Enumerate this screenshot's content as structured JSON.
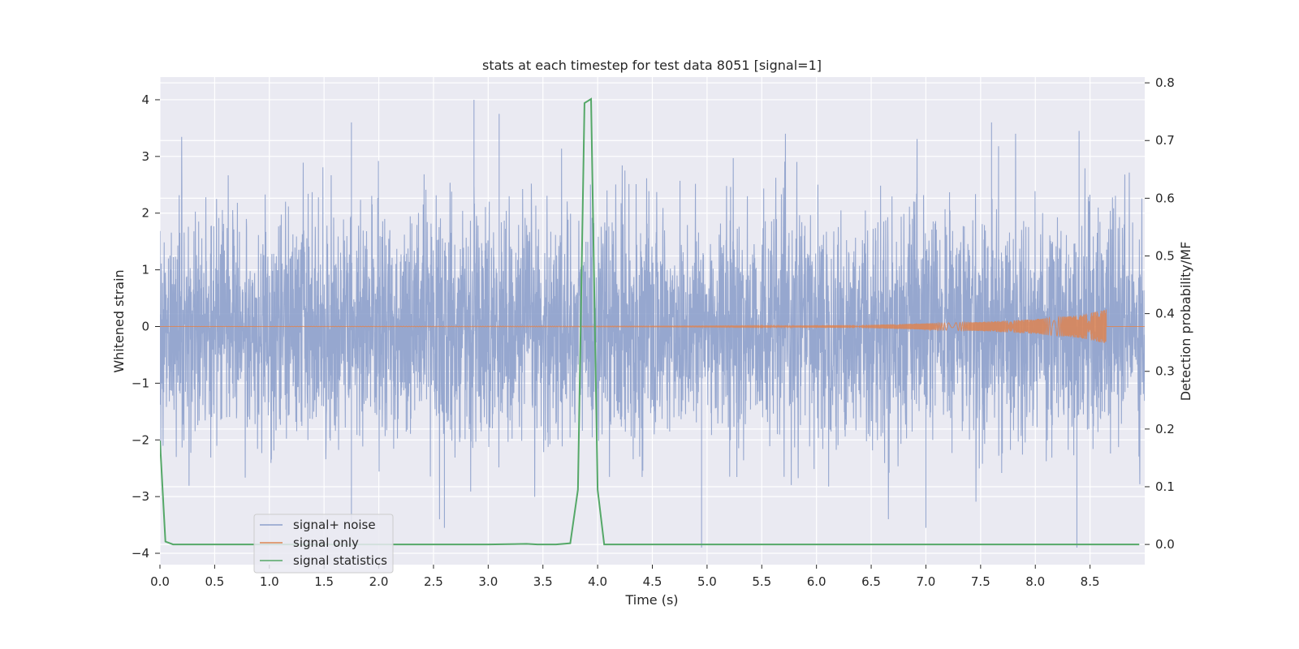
{
  "chart_data": {
    "type": "line",
    "title": "stats at each timestep for test data 8051 [signal=1]",
    "xlabel": "Time (s)",
    "ylabel": "Whitened strain",
    "y2label": "Detection probability/MF",
    "xlim": [
      0.0,
      9.0
    ],
    "ylim": [
      -4.2,
      4.4
    ],
    "y2lim": [
      -0.035,
      0.81
    ],
    "x_ticks": [
      "0.0",
      "0.5",
      "1.0",
      "1.5",
      "2.0",
      "2.5",
      "3.0",
      "3.5",
      "4.0",
      "4.5",
      "5.0",
      "5.5",
      "6.0",
      "6.5",
      "7.0",
      "7.5",
      "8.0",
      "8.5"
    ],
    "y_ticks": [
      "4",
      "3",
      "2",
      "1",
      "0",
      "−1",
      "−2",
      "−3",
      "−4"
    ],
    "y2_ticks": [
      "0.8",
      "0.7",
      "0.6",
      "0.5",
      "0.4",
      "0.3",
      "0.2",
      "0.1",
      "0.0"
    ],
    "grid": true,
    "legend_position": "lower-left",
    "series": [
      {
        "name": "signal+ noise",
        "axis": "left",
        "color": "#8da0cb",
        "description": "dense whitened strain time series, bulk within ±2, extremes near ±4",
        "notable_peaks": [
          [
            2.87,
            4.0
          ],
          [
            1.75,
            3.6
          ],
          [
            3.1,
            3.75
          ],
          [
            7.6,
            3.6
          ],
          [
            8.4,
            3.45
          ],
          [
            4.95,
            -3.9
          ],
          [
            7.0,
            -3.55
          ],
          [
            8.38,
            -3.9
          ],
          [
            2.6,
            -3.55
          ],
          [
            1.75,
            -3.45
          ]
        ]
      },
      {
        "name": "signal only",
        "axis": "left",
        "color": "#dd8452",
        "description": "chirp waveform, near 0 amplitude until ~5.5 s, growing to about ±0.3 near 8.65 s then ending",
        "envelope": [
          [
            0.0,
            0.0
          ],
          [
            5.5,
            0.01
          ],
          [
            6.5,
            0.03
          ],
          [
            7.5,
            0.08
          ],
          [
            8.0,
            0.13
          ],
          [
            8.4,
            0.2
          ],
          [
            8.6,
            0.28
          ],
          [
            8.65,
            0.3
          ]
        ]
      },
      {
        "name": "signal statistics",
        "axis": "right",
        "color": "#55a868",
        "x": [
          0.0,
          0.05,
          0.12,
          0.5,
          1.0,
          1.5,
          2.0,
          2.5,
          3.0,
          3.35,
          3.45,
          3.62,
          3.75,
          3.82,
          3.88,
          3.94,
          4.0,
          4.06,
          4.12,
          4.5,
          5.0,
          5.5,
          6.0,
          6.5,
          7.0,
          7.5,
          8.0,
          8.5,
          8.95
        ],
        "values": [
          0.18,
          0.005,
          0.0,
          0.0,
          0.0,
          0.0,
          0.0,
          0.0,
          0.0,
          0.001,
          0.0,
          0.0,
          0.002,
          0.095,
          0.765,
          0.772,
          0.095,
          0.0,
          0.0,
          0.0,
          0.0,
          0.0,
          0.0,
          0.0,
          0.0,
          0.0,
          0.0,
          0.0,
          0.0
        ]
      }
    ]
  }
}
